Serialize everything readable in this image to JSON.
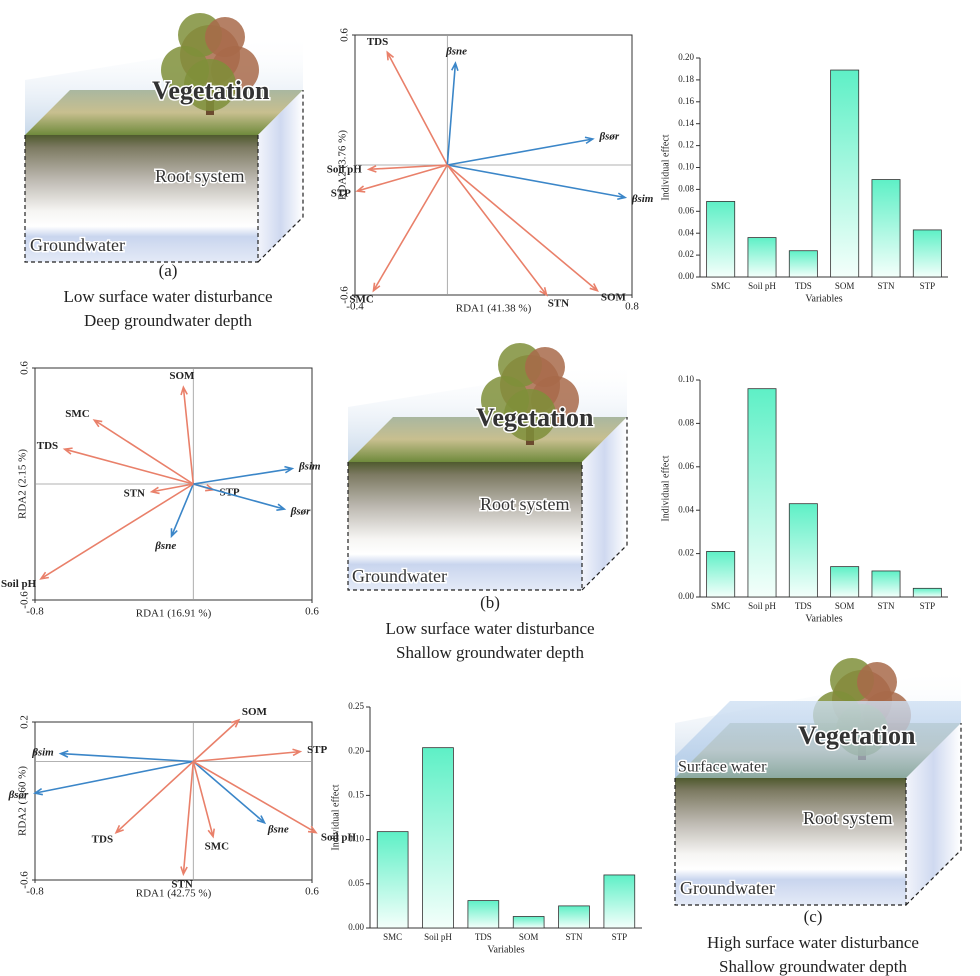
{
  "chart_data": [
    {
      "type": "biplot",
      "x_label": "RDA1 (41.38 %)",
      "y_label": "RDA2 (3.76 %)",
      "xlim": [
        -0.4,
        0.8
      ],
      "ylim": [
        -0.6,
        0.6
      ],
      "xticks": [
        -0.4,
        0.8
      ],
      "yticks": [
        -0.6,
        0.6
      ],
      "vectors": [
        {
          "name": "TDS",
          "x": -0.26,
          "y": 0.52,
          "color": "#e9806a"
        },
        {
          "name": "βsne",
          "x": 0.035,
          "y": 0.47,
          "color": "#3b86c8"
        },
        {
          "name": "βsør",
          "x": 0.63,
          "y": 0.12,
          "color": "#3b86c8"
        },
        {
          "name": "Soil pH",
          "x": -0.34,
          "y": -0.02,
          "color": "#e9806a"
        },
        {
          "name": "STP",
          "x": -0.39,
          "y": -0.12,
          "color": "#e9806a"
        },
        {
          "name": "βsim",
          "x": 0.77,
          "y": -0.15,
          "color": "#3b86c8"
        },
        {
          "name": "SMC",
          "x": -0.32,
          "y": -0.58,
          "color": "#e9806a"
        },
        {
          "name": "STN",
          "x": 0.43,
          "y": -0.6,
          "color": "#e9806a"
        },
        {
          "name": "SOM",
          "x": 0.65,
          "y": -0.58,
          "color": "#e9806a"
        }
      ]
    },
    {
      "type": "bar",
      "x_label": "Variables",
      "y_label": "Individual effect",
      "color": "#5ef0c6",
      "categories": [
        "SMC",
        "Soil pH",
        "TDS",
        "SOM",
        "STN",
        "STP"
      ],
      "values": [
        0.069,
        0.036,
        0.024,
        0.189,
        0.089,
        0.043
      ],
      "ylim": [
        0,
        0.2
      ],
      "yticks": [
        {
          "value": 0,
          "label": "0.00"
        },
        {
          "value": 0.02,
          "label": "0.02"
        },
        {
          "value": 0.04,
          "label": "0.04"
        },
        {
          "value": 0.06,
          "label": "0.06"
        },
        {
          "value": 0.08,
          "label": "0.08"
        },
        {
          "value": 0.1,
          "label": "0.10"
        },
        {
          "value": 0.12,
          "label": "0.12"
        },
        {
          "value": 0.14,
          "label": "0.14"
        },
        {
          "value": 0.16,
          "label": "0.16"
        },
        {
          "value": 0.18,
          "label": "0.18"
        },
        {
          "value": 0.2,
          "label": "0.20"
        }
      ]
    },
    {
      "type": "biplot",
      "x_label": "RDA1 (16.91 %)",
      "y_label": "RDA2 (2.15 %)",
      "xlim": [
        -0.8,
        0.6
      ],
      "ylim": [
        -0.6,
        0.6
      ],
      "xticks": [
        -0.8,
        0.6
      ],
      "yticks": [
        -0.6,
        0.6
      ],
      "vectors": [
        {
          "name": "SOM",
          "x": -0.05,
          "y": 0.5,
          "color": "#e9806a"
        },
        {
          "name": "SMC",
          "x": -0.5,
          "y": 0.33,
          "color": "#e9806a"
        },
        {
          "name": "TDS",
          "x": -0.65,
          "y": 0.18,
          "color": "#e9806a"
        },
        {
          "name": "βsim",
          "x": 0.5,
          "y": 0.08,
          "color": "#3b86c8"
        },
        {
          "name": "STN",
          "x": -0.21,
          "y": -0.04,
          "color": "#e9806a"
        },
        {
          "name": "STP",
          "x": 0.1,
          "y": -0.03,
          "color": "#e9806a"
        },
        {
          "name": "βsør",
          "x": 0.46,
          "y": -0.13,
          "color": "#3b86c8"
        },
        {
          "name": "βsne",
          "x": -0.11,
          "y": -0.27,
          "color": "#3b86c8"
        },
        {
          "name": "Soil pH",
          "x": -0.77,
          "y": -0.49,
          "color": "#e9806a"
        }
      ]
    },
    {
      "type": "bar",
      "x_label": "Variables",
      "y_label": "Individual effect",
      "color": "#5ef0c6",
      "categories": [
        "SMC",
        "Soil pH",
        "TDS",
        "SOM",
        "STN",
        "STP"
      ],
      "values": [
        0.021,
        0.096,
        0.043,
        0.014,
        0.012,
        0.004
      ],
      "ylim": [
        0,
        0.1
      ],
      "yticks": [
        {
          "value": 0,
          "label": "0.00"
        },
        {
          "value": 0.02,
          "label": "0.02"
        },
        {
          "value": 0.04,
          "label": "0.04"
        },
        {
          "value": 0.06,
          "label": "0.06"
        },
        {
          "value": 0.08,
          "label": "0.08"
        },
        {
          "value": 0.1,
          "label": "0.10"
        }
      ]
    },
    {
      "type": "biplot",
      "x_label": "RDA1 (42.75 %)",
      "y_label": "RDA2 (1.60 %)",
      "xlim": [
        -0.8,
        0.6
      ],
      "ylim": [
        -0.6,
        0.2
      ],
      "xticks": [
        -0.8,
        0.6
      ],
      "yticks": [
        -0.6,
        0.2
      ],
      "vectors": [
        {
          "name": "SOM",
          "x": 0.23,
          "y": 0.21,
          "color": "#e9806a"
        },
        {
          "name": "βsim",
          "x": -0.67,
          "y": 0.04,
          "color": "#3b86c8"
        },
        {
          "name": "STP",
          "x": 0.54,
          "y": 0.05,
          "color": "#e9806a"
        },
        {
          "name": "βsør",
          "x": -0.8,
          "y": -0.16,
          "color": "#3b86c8"
        },
        {
          "name": "βsne",
          "x": 0.36,
          "y": -0.31,
          "color": "#3b86c8"
        },
        {
          "name": "TDS",
          "x": -0.39,
          "y": -0.36,
          "color": "#e9806a"
        },
        {
          "name": "Soil pH",
          "x": 0.62,
          "y": -0.36,
          "color": "#e9806a"
        },
        {
          "name": "SMC",
          "x": 0.1,
          "y": -0.38,
          "color": "#e9806a"
        },
        {
          "name": "STN",
          "x": -0.05,
          "y": -0.57,
          "color": "#e9806a"
        }
      ]
    },
    {
      "type": "bar",
      "x_label": "Variables",
      "y_label": "Individual effect",
      "color": "#5ef0c6",
      "categories": [
        "SMC",
        "Soil pH",
        "TDS",
        "SOM",
        "STN",
        "STP"
      ],
      "values": [
        0.109,
        0.204,
        0.031,
        0.013,
        0.025,
        0.06
      ],
      "ylim": [
        0,
        0.25
      ],
      "yticks": [
        {
          "value": 0,
          "label": "0.00"
        },
        {
          "value": 0.05,
          "label": "0.05"
        },
        {
          "value": 0.1,
          "label": "0.10"
        },
        {
          "value": 0.15,
          "label": "0.15"
        },
        {
          "value": 0.2,
          "label": "0.20"
        },
        {
          "value": 0.25,
          "label": "0.25"
        }
      ]
    }
  ],
  "diagrams": [
    {
      "labels": [
        "Vegetation",
        "Root system",
        "Groundwater"
      ],
      "panel": "(a)",
      "caption": [
        "Low surface water disturbance",
        "Deep groundwater depth"
      ]
    },
    {
      "labels": [
        "Vegetation",
        "Root system",
        "Groundwater"
      ],
      "panel": "(b)",
      "caption": [
        "Low surface water disturbance",
        "Shallow groundwater depth"
      ]
    },
    {
      "labels": [
        "Surface water",
        "Vegetation",
        "Root system",
        "Groundwater"
      ],
      "panel": "(c)",
      "caption": [
        "High surface water disturbance",
        "Shallow groundwater depth"
      ]
    }
  ]
}
